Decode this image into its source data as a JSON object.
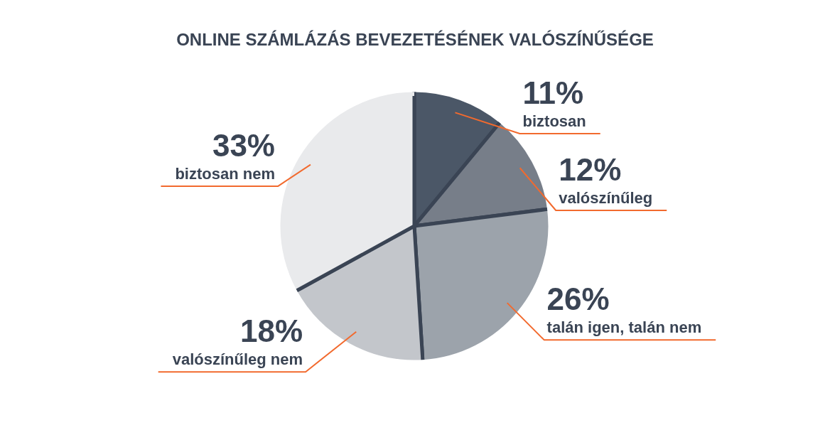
{
  "chart_data": {
    "type": "pie",
    "title": "ONLINE SZÁMLÁZÁS BEVEZETÉSÉNEK VALÓSZÍNŰSÉGE",
    "categories": [
      "biztosan",
      "valószínűleg",
      "talán igen, talán nem",
      "valószínűleg nem",
      "biztosan nem"
    ],
    "values": [
      11,
      12,
      26,
      18,
      33
    ],
    "colors": [
      "#4b5767",
      "#777e89",
      "#9ca3ab",
      "#c3c6cb",
      "#e9eaec"
    ],
    "value_labels": [
      "11%",
      "12%",
      "26%",
      "18%",
      "33%"
    ],
    "legend": false
  }
}
